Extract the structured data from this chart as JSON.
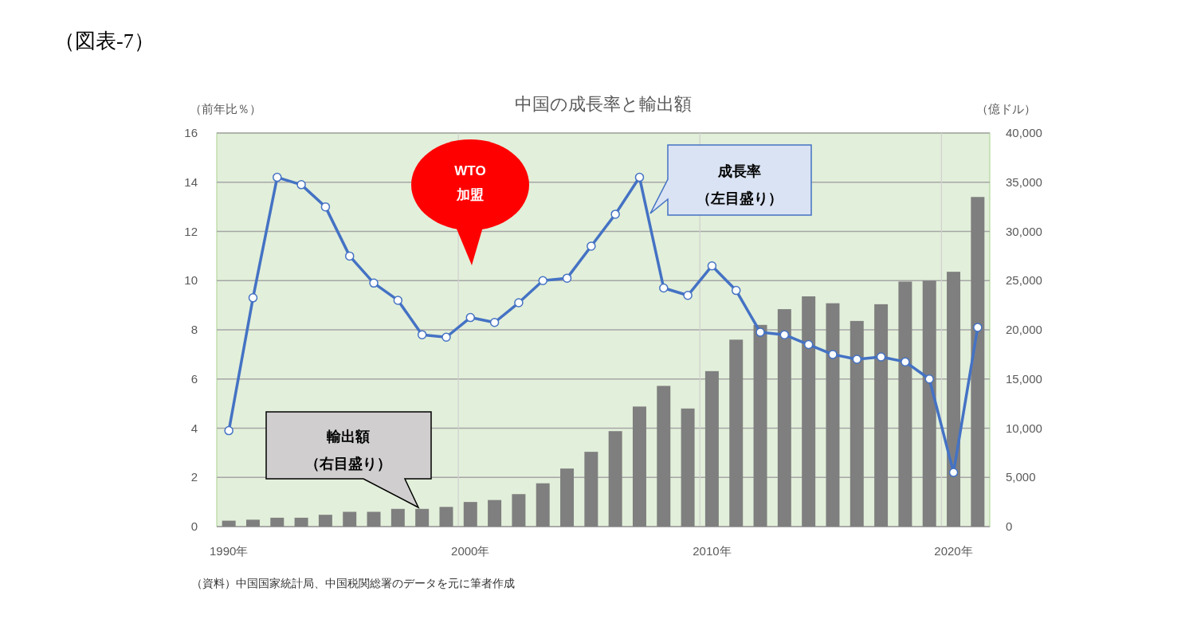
{
  "chart_data": {
    "type": "bar",
    "title": "中国の成長率と輸出額",
    "ylabel": "（前年比％）",
    "y2label": "（億ドル）",
    "categories": [
      "1990年",
      null,
      null,
      null,
      null,
      null,
      null,
      null,
      null,
      null,
      "2000年",
      null,
      null,
      null,
      null,
      null,
      null,
      null,
      null,
      null,
      "2010年",
      null,
      null,
      null,
      null,
      null,
      null,
      null,
      null,
      null,
      "2020年",
      null
    ],
    "series": [
      {
        "axis": "y2",
        "color": "#7f7f7f",
        "values": [
          600,
          700,
          900,
          900,
          1200,
          1500,
          1500,
          1800,
          1800,
          2000,
          2500,
          2700,
          3300,
          4400,
          5900,
          7600,
          9700,
          12200,
          14300,
          12000,
          15800,
          19000,
          20500,
          22100,
          23400,
          22700,
          20900,
          22600,
          24900,
          25000,
          25900,
          33500
        ]
      },
      {
        "type": "line",
        "color": "#4472c4",
        "values": [
          3.9,
          9.3,
          14.2,
          13.9,
          13.0,
          11.0,
          9.9,
          9.2,
          7.8,
          7.7,
          8.5,
          8.3,
          9.1,
          10.0,
          10.1,
          11.4,
          12.7,
          14.2,
          9.7,
          9.4,
          10.6,
          9.6,
          7.9,
          7.8,
          7.4,
          7.0,
          6.8,
          6.9,
          6.7,
          6.0,
          2.2,
          8.1
        ]
      }
    ],
    "ylim": [
      0,
      16
    ],
    "yticks": [
      0,
      2,
      4,
      6,
      8,
      10,
      12,
      14,
      16
    ],
    "y2lim": [
      0,
      40000
    ],
    "y2ticks": [
      0,
      {
        "value": 5000,
        "label": "5,000"
      },
      {
        "value": 10000,
        "label": "10,000"
      },
      {
        "value": 15000,
        "label": "15,000"
      },
      {
        "value": 20000,
        "label": "20,000"
      },
      {
        "value": 25000,
        "label": "25,000"
      },
      {
        "value": 30000,
        "label": "30,000"
      },
      {
        "value": 35000,
        "label": "35,000"
      },
      {
        "value": 40000,
        "label": "40,000"
      }
    ],
    "grid": true,
    "marker": "circle",
    "line_style": "solid",
    "annotations": [
      "（図表-7）",
      "WTO",
      "加盟",
      "成長率",
      "（左目盛り）",
      "輸出額",
      "（右目盛り）",
      "（資料）中国国家統計局、中国税関総署のデータを元に筆者作成"
    ]
  }
}
